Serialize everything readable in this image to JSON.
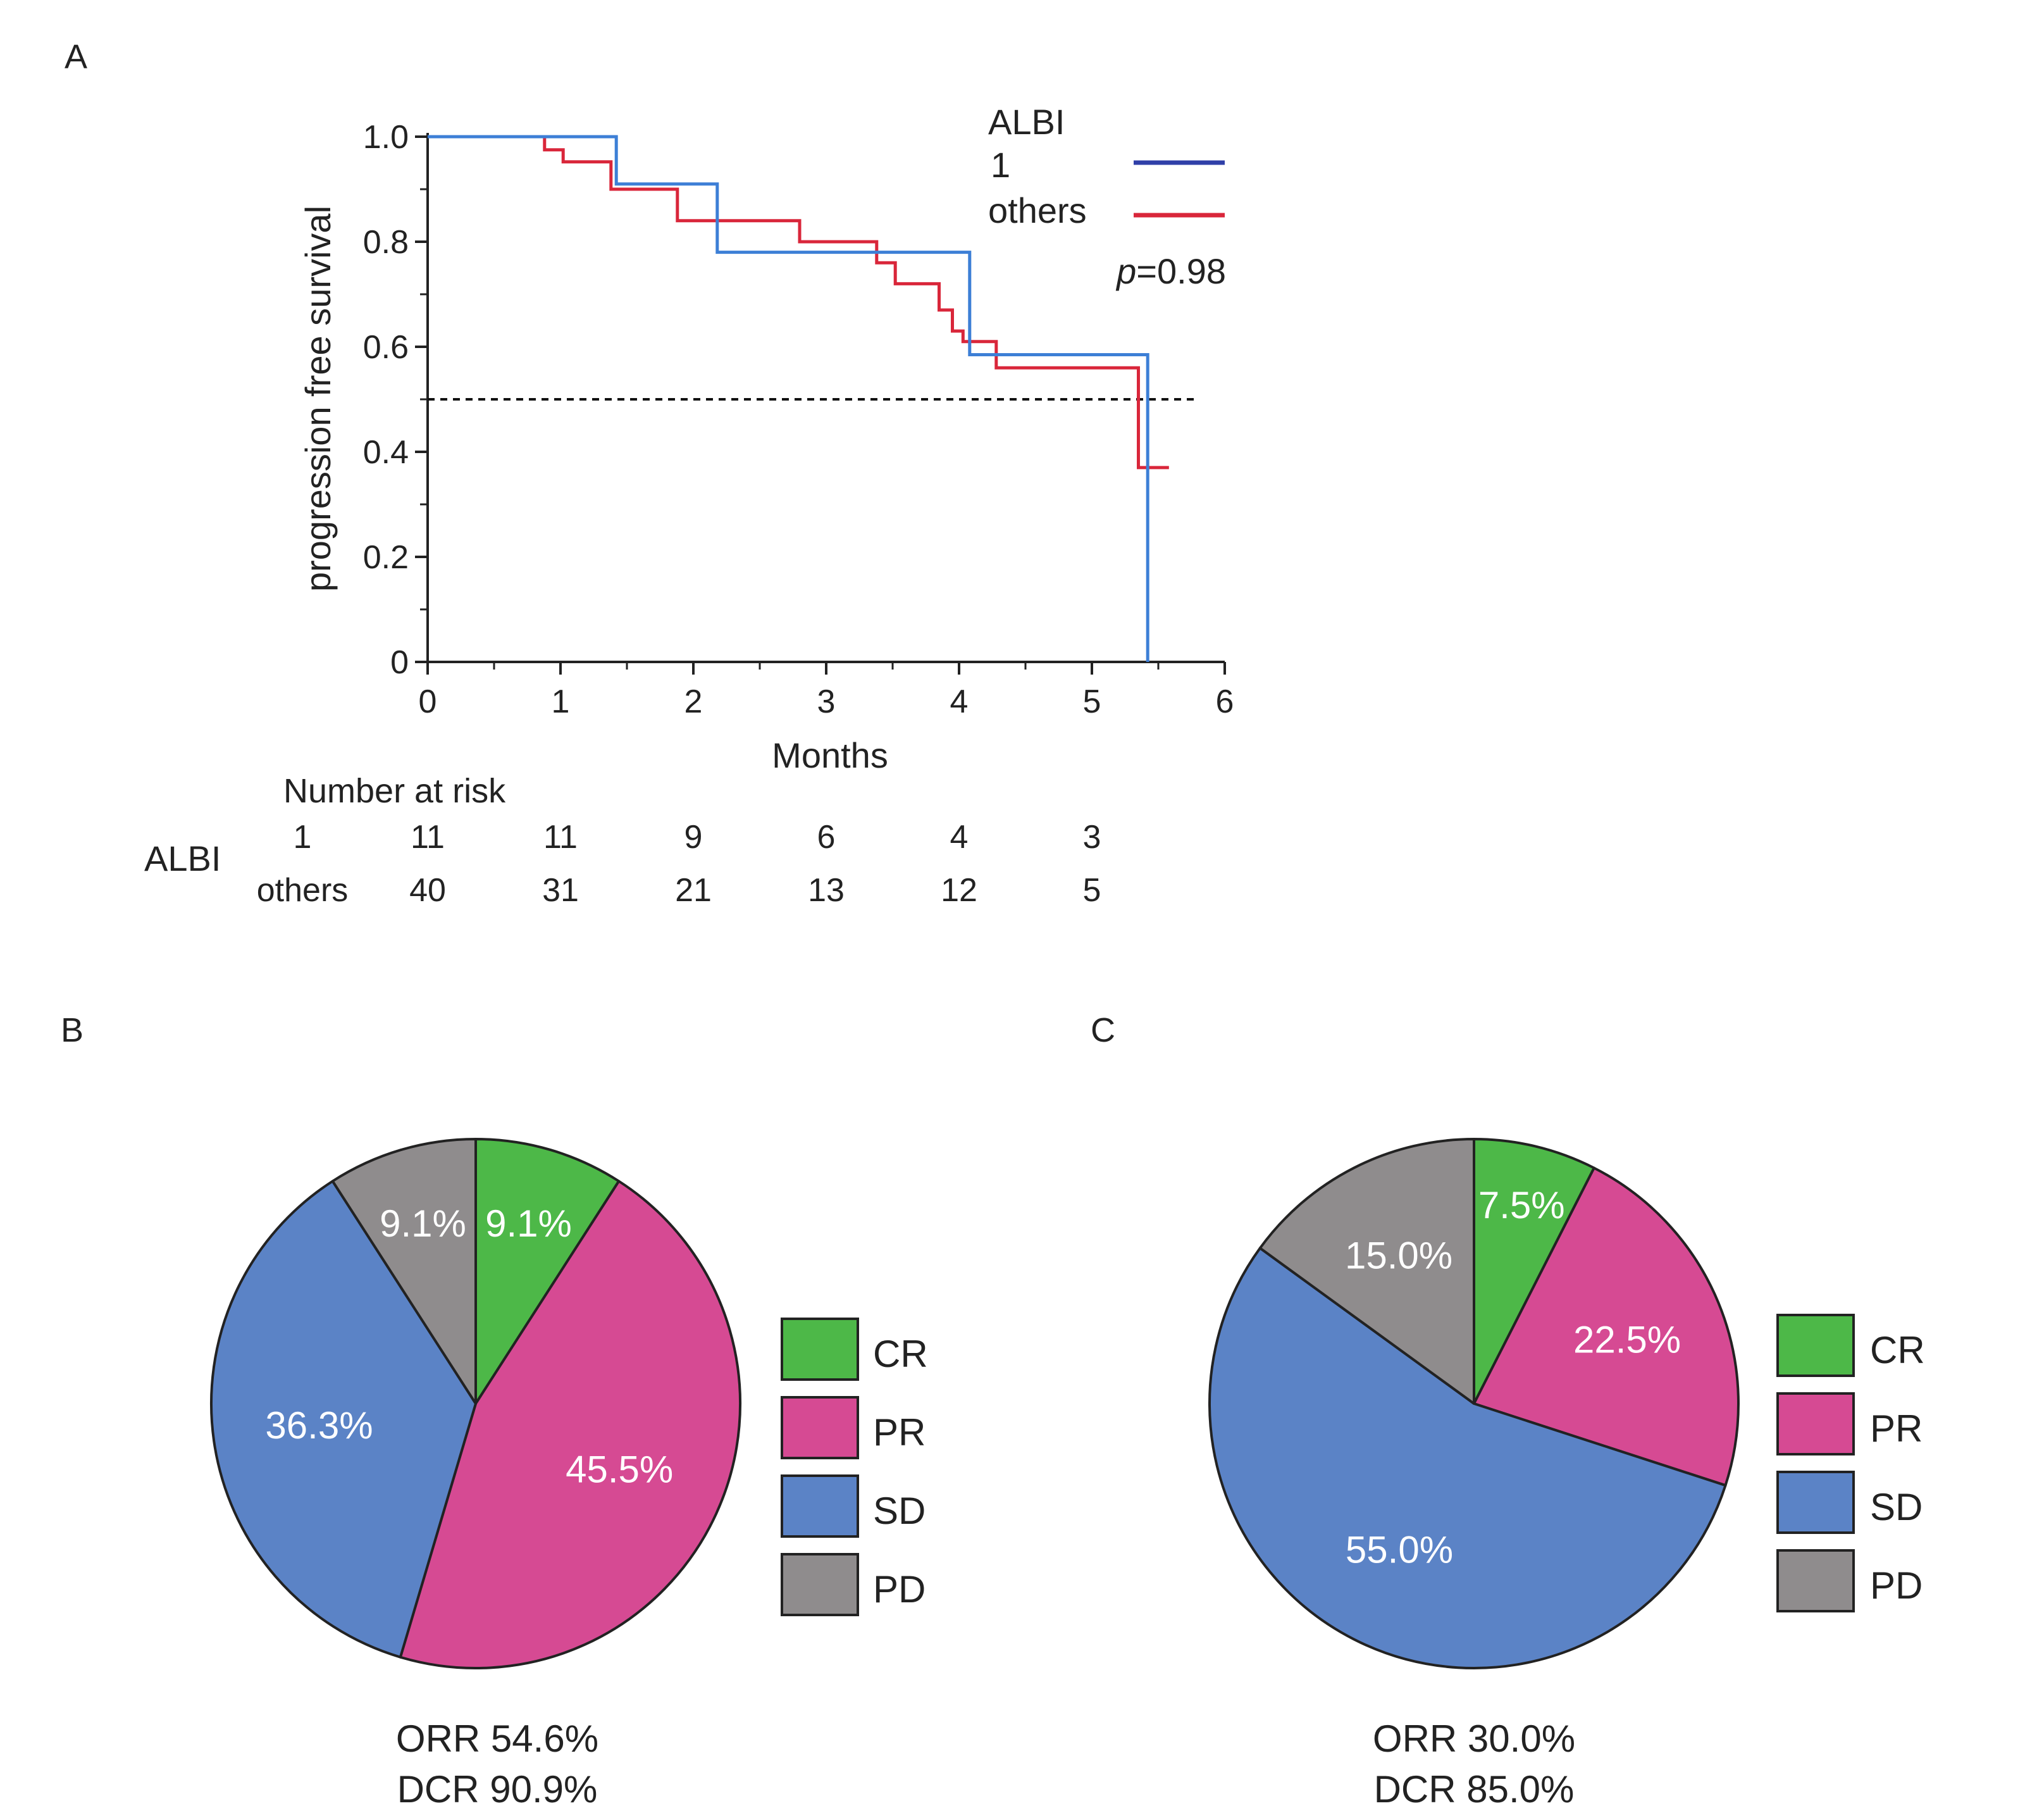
{
  "panel_labels": {
    "a": "A",
    "b": "B",
    "c": "C"
  },
  "colors": {
    "albi1": "#2f3fa8",
    "others": "#d9263a",
    "albi1_curve": "#3d7fd6",
    "CR": "#4db848",
    "PR": "#d64a93",
    "SD": "#5b83c6",
    "PD": "#8f8c8d"
  },
  "chart_data": [
    {
      "type": "line",
      "title": "",
      "xlabel": "Months",
      "ylabel": "progression free survival",
      "xlim": [
        0,
        6
      ],
      "ylim": [
        0,
        1.0
      ],
      "x_ticks": [
        "0",
        "1",
        "2",
        "3",
        "4",
        "5",
        "6"
      ],
      "y_ticks": [
        "0",
        "0.2",
        "0.4",
        "0.6",
        "0.8",
        "1.0"
      ],
      "grid": false,
      "legend_placement": "top-right",
      "legend_title": "ALBI",
      "reference_line_y": 0.5,
      "annotation": {
        "p_label": "p",
        "p_value": "=0.98"
      },
      "series": [
        {
          "name": "1",
          "step_points": [
            [
              0,
              1.0
            ],
            [
              1.42,
              1.0
            ],
            [
              1.42,
              0.91
            ],
            [
              2.18,
              0.91
            ],
            [
              2.18,
              0.78
            ],
            [
              4.08,
              0.78
            ],
            [
              4.08,
              0.585
            ],
            [
              5.42,
              0.585
            ],
            [
              5.42,
              0.0
            ]
          ]
        },
        {
          "name": "others",
          "step_points": [
            [
              0,
              1.0
            ],
            [
              0.88,
              1.0
            ],
            [
              0.88,
              0.975
            ],
            [
              1.02,
              0.975
            ],
            [
              1.02,
              0.952
            ],
            [
              1.38,
              0.952
            ],
            [
              1.38,
              0.9
            ],
            [
              1.88,
              0.9
            ],
            [
              1.88,
              0.84
            ],
            [
              2.8,
              0.84
            ],
            [
              2.8,
              0.8
            ],
            [
              3.38,
              0.8
            ],
            [
              3.38,
              0.76
            ],
            [
              3.52,
              0.76
            ],
            [
              3.52,
              0.72
            ],
            [
              3.85,
              0.72
            ],
            [
              3.85,
              0.67
            ],
            [
              3.95,
              0.67
            ],
            [
              3.95,
              0.63
            ],
            [
              4.03,
              0.63
            ],
            [
              4.03,
              0.61
            ],
            [
              4.28,
              0.61
            ],
            [
              4.28,
              0.56
            ],
            [
              5.35,
              0.56
            ],
            [
              5.35,
              0.37
            ],
            [
              5.58,
              0.37
            ]
          ]
        }
      ],
      "risk_table": {
        "title": "Number at  risk",
        "group_label": "ALBI",
        "rows": [
          {
            "label": "1",
            "values": [
              "11",
              "11",
              "9",
              "6",
              "4",
              "3"
            ]
          },
          {
            "label": "others",
            "values": [
              "40",
              "31",
              "21",
              "13",
              "12",
              "5"
            ]
          }
        ]
      }
    },
    {
      "type": "pie",
      "title": "",
      "legend_placement": "right",
      "slices": [
        {
          "name": "CR",
          "value": 9.1,
          "label": "9.1%"
        },
        {
          "name": "PR",
          "value": 45.5,
          "label": "45.5%"
        },
        {
          "name": "SD",
          "value": 36.3,
          "label": "36.3%"
        },
        {
          "name": "PD",
          "value": 9.1,
          "label": "9.1%"
        }
      ],
      "footer": [
        "ORR 54.6%",
        "DCR 90.9%"
      ]
    },
    {
      "type": "pie",
      "title": "",
      "legend_placement": "right",
      "slices": [
        {
          "name": "CR",
          "value": 7.5,
          "label": "7.5%"
        },
        {
          "name": "PR",
          "value": 22.5,
          "label": "22.5%"
        },
        {
          "name": "SD",
          "value": 55.0,
          "label": "55.0%"
        },
        {
          "name": "PD",
          "value": 15.0,
          "label": "15.0%"
        }
      ],
      "footer": [
        "ORR 30.0%",
        "DCR 85.0%"
      ]
    }
  ]
}
